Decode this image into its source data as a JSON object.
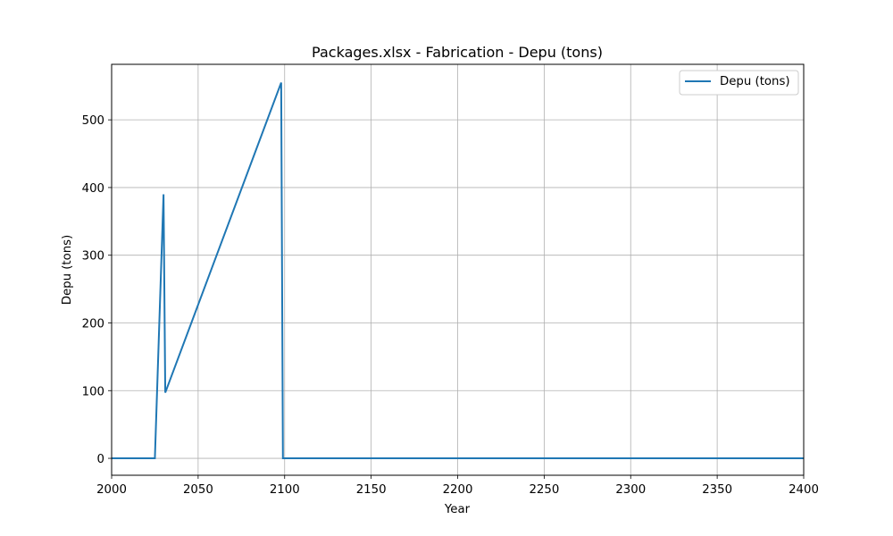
{
  "chart_data": {
    "type": "line",
    "title": "Packages.xlsx - Fabrication - Depu (tons)",
    "xlabel": "Year",
    "ylabel": "Depu (tons)",
    "xlim": [
      2000,
      2400
    ],
    "ylim": [
      -25,
      582
    ],
    "xticks": [
      2000,
      2050,
      2100,
      2150,
      2200,
      2250,
      2300,
      2350,
      2400
    ],
    "yticks": [
      0,
      100,
      200,
      300,
      400,
      500
    ],
    "grid": true,
    "legend_position": "top-right",
    "series": [
      {
        "name": "Depu (tons)",
        "color": "#1f77b4",
        "x": [
          2000,
          2025,
          2030,
          2031,
          2098,
          2099,
          2400
        ],
        "y": [
          0,
          0,
          390,
          97,
          555,
          0,
          0
        ]
      }
    ]
  }
}
